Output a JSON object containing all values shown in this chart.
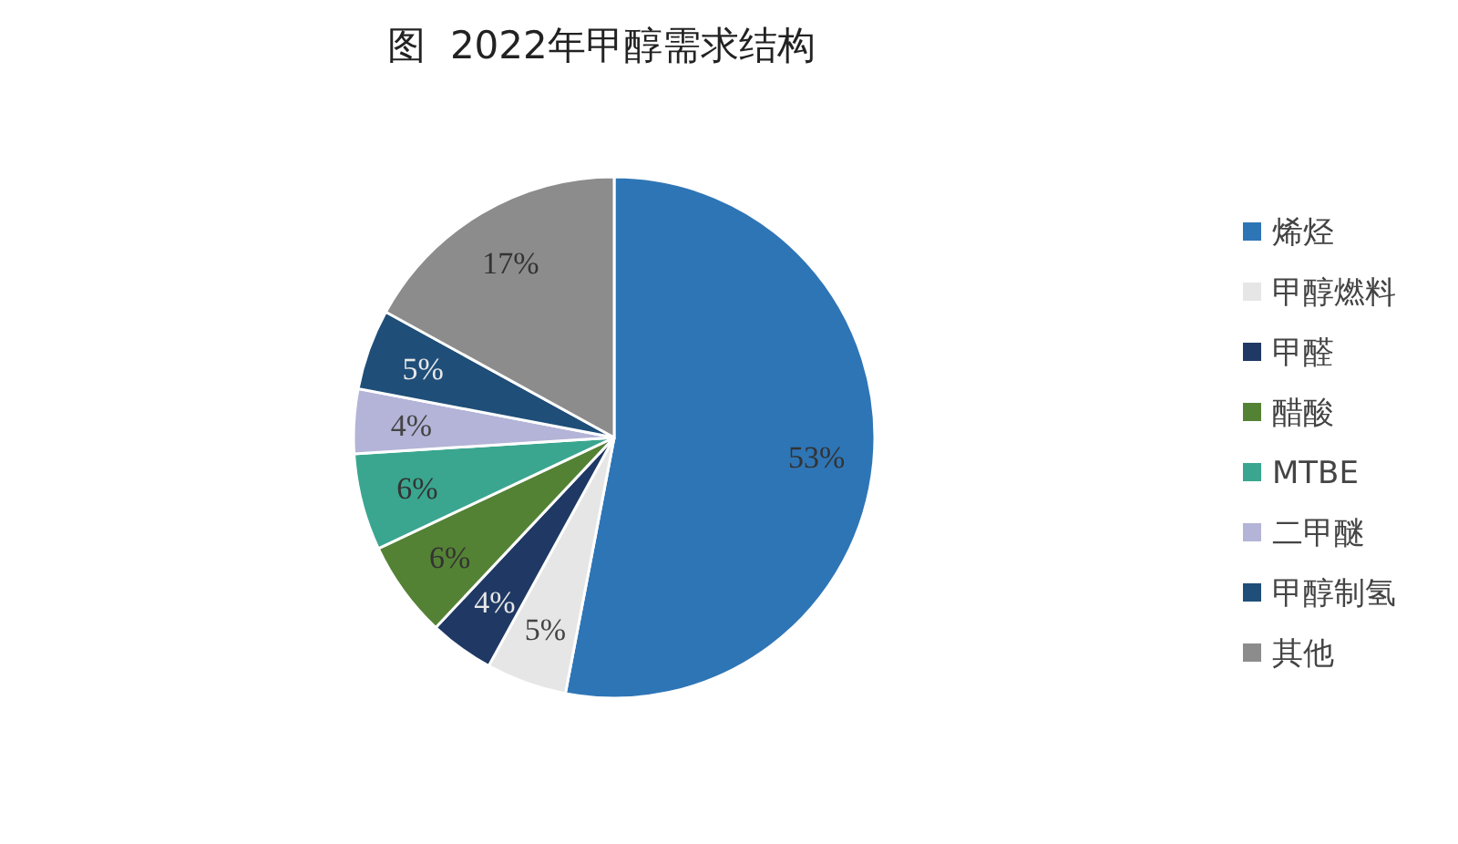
{
  "chart_data": {
    "type": "pie",
    "title": "图  2022年甲醇需求结构",
    "categories": [
      "烯烃",
      "甲醇燃料",
      "甲醛",
      "醋酸",
      "MTBE",
      "二甲醚",
      "甲醇制氢",
      "其他"
    ],
    "values": [
      53,
      5,
      4,
      6,
      6,
      4,
      5,
      17
    ],
    "colors": [
      "#2e75b6",
      "#e7e6e6",
      "#1f3864",
      "#548235",
      "#3aa68f",
      "#b4b4d8",
      "#1f4e79",
      "#8c8c8c"
    ],
    "value_labels": [
      "53%",
      "5%",
      "4%",
      "6%",
      "6%",
      "4%",
      "5%",
      "17%"
    ],
    "legend": "right"
  }
}
